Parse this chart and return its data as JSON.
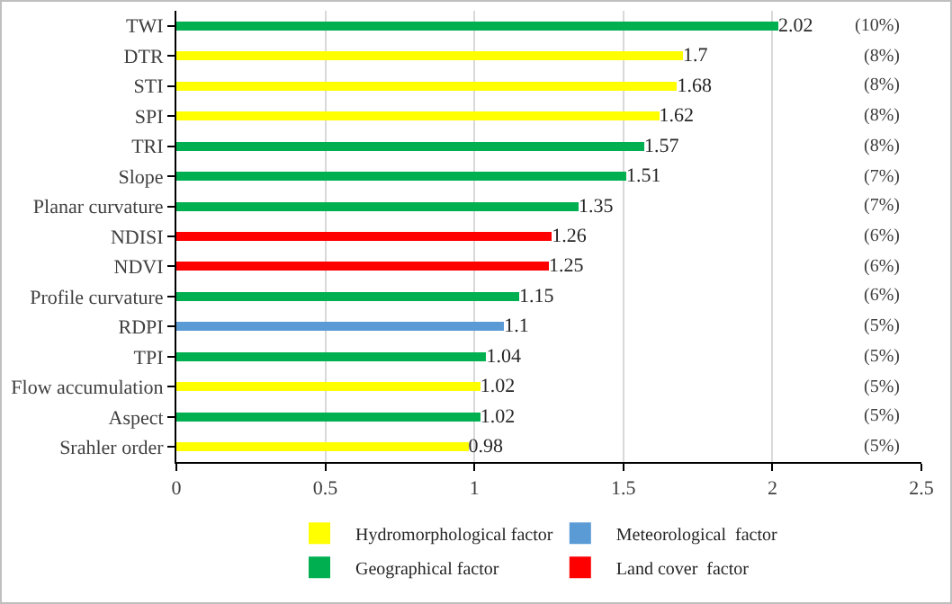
{
  "chart_data": {
    "type": "bar",
    "orientation": "horizontal",
    "stacked": true,
    "data_labels": true,
    "categories": [
      "TWI",
      "DTR",
      "STI",
      "SPI",
      "TRI",
      "Slope",
      "Planar curvature",
      "NDISI",
      "NDVI",
      "Profile curvature",
      "RDPI",
      "TPI",
      "Flow accumulation",
      "Aspect",
      "Srahler order"
    ],
    "series": [
      {
        "name": "Hydromorphological factor",
        "color": "#ffff00",
        "values": [
          null,
          1.7,
          1.68,
          1.62,
          null,
          null,
          null,
          null,
          null,
          null,
          null,
          null,
          1.02,
          null,
          0.98
        ]
      },
      {
        "name": "Meteorological  factor",
        "color": "#5b9bd5",
        "values": [
          null,
          null,
          null,
          null,
          null,
          null,
          null,
          null,
          null,
          null,
          1.1,
          null,
          null,
          null,
          null
        ]
      },
      {
        "name": "Geographical factor",
        "color": "#00b050",
        "values": [
          2.02,
          null,
          null,
          null,
          1.57,
          1.51,
          1.35,
          null,
          null,
          1.15,
          null,
          1.04,
          null,
          1.02,
          null
        ]
      },
      {
        "name": "Land cover  factor",
        "color": "#ff0000",
        "values": [
          null,
          null,
          null,
          null,
          null,
          null,
          null,
          1.26,
          1.25,
          null,
          null,
          null,
          null,
          null,
          null
        ]
      }
    ],
    "xlim": [
      0,
      2.5
    ],
    "xticks": [
      0,
      0.5,
      1,
      1.5,
      2,
      2.5
    ],
    "grid": "x",
    "legend": "bottom",
    "annotations": [
      "(10%)",
      "(8%)",
      "(8%)",
      "(8%)",
      "(8%)",
      "(7%)",
      "(7%)",
      "(6%)",
      "(6%)",
      "(6%)",
      "(5%)",
      "(5%)",
      "(5%)",
      "(5%)",
      "(5%)"
    ]
  }
}
